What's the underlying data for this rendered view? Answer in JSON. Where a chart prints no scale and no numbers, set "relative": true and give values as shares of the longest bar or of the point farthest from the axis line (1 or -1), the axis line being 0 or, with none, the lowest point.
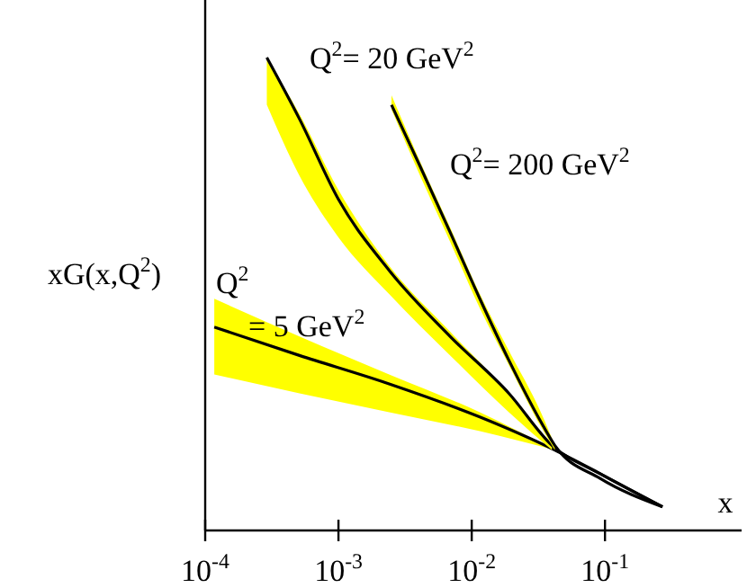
{
  "chart_data": {
    "type": "line",
    "relative": true,
    "log": "x",
    "xlabel": "x",
    "ylabel": "xG(x,Q$^{2}$)",
    "xlim": [
      0.0001,
      1.06
    ],
    "xticks": [
      {
        "value": 0.0001,
        "label": "10$^{-4}$"
      },
      {
        "value": 0.001,
        "label": "10$^{-3}$"
      },
      {
        "value": 0.01,
        "label": "10$^{-2}$"
      },
      {
        "value": 0.1,
        "label": "10$^{-1}$"
      }
    ],
    "line_style": "solid",
    "series": [
      {
        "name": "Q$^{2}$ = 5 GeV$^{2}$",
        "color": "#000000",
        "x": [
          0.000117,
          0.00051,
          0.0024,
          0.0115,
          0.042,
          0.092,
          0.27
        ],
        "values": [
          0.43,
          0.37,
          0.31,
          0.24,
          0.17,
          0.12,
          0.05
        ],
        "lower": [
          0.33,
          0.29,
          0.25,
          0.21,
          0.17,
          null,
          null
        ],
        "upper": [
          0.49,
          0.41,
          0.33,
          0.25,
          0.17,
          null,
          null
        ]
      },
      {
        "name": "Q$^{2}$= 20 GeV$^{2}$",
        "color": "#000000",
        "x": [
          0.00029,
          0.00051,
          0.001,
          0.0024,
          0.0069,
          0.019,
          0.04,
          0.092,
          0.27
        ],
        "values": [
          1.0,
          0.87,
          0.7,
          0.55,
          0.41,
          0.29,
          0.18,
          0.12,
          0.05
        ],
        "lower": [
          0.9,
          0.75,
          0.62,
          0.5,
          0.37,
          0.25,
          0.17,
          null,
          null
        ],
        "upper": [
          1.0,
          0.88,
          0.72,
          0.56,
          0.42,
          0.29,
          0.18,
          null,
          null
        ]
      },
      {
        "name": "Q$^{2}$= 200 GeV$^{2}$",
        "color": "#000000",
        "x": [
          0.0025,
          0.0041,
          0.0069,
          0.0115,
          0.019,
          0.033,
          0.042,
          0.092,
          0.27
        ],
        "values": [
          0.9,
          0.77,
          0.63,
          0.49,
          0.36,
          0.23,
          0.18,
          0.11,
          0.05
        ],
        "lower": [
          0.89,
          0.75,
          0.61,
          0.47,
          0.35,
          0.22,
          0.17,
          null,
          null
        ],
        "upper": [
          0.92,
          0.78,
          0.64,
          0.5,
          0.38,
          0.25,
          0.18,
          null,
          null
        ]
      }
    ]
  }
}
